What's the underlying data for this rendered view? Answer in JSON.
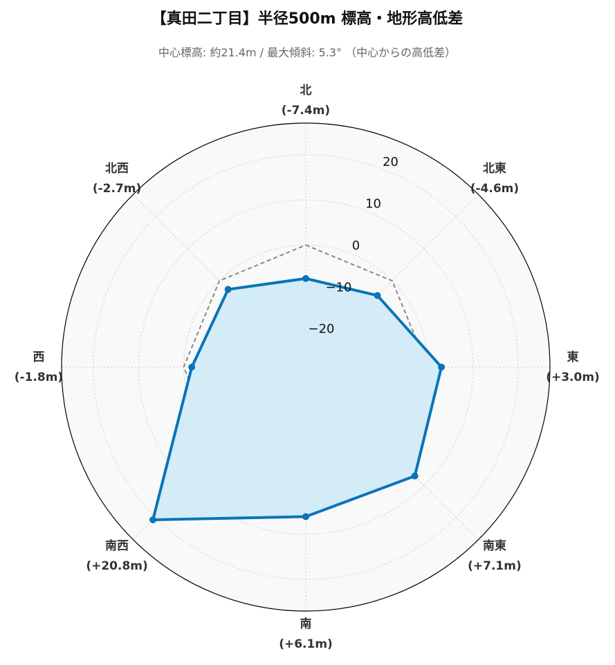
{
  "chart_data": {
    "type": "radar",
    "title": "【真田二丁目】半径500m 標高・地形高低差",
    "subtitle": "中心標高: 約21.4m / 最大傾斜: 5.3° （中心からの高低差）",
    "categories": [
      "北",
      "北東",
      "東",
      "南東",
      "南",
      "南西",
      "西",
      "北西"
    ],
    "series": [
      {
        "color": "#0a74b8",
        "fill": "#d3ecf8",
        "values": [
          -7.4,
          -4.6,
          3.0,
          7.1,
          6.1,
          20.8,
          -1.8,
          -2.7
        ],
        "value_labels": [
          "(-7.4m)",
          "(-4.6m)",
          "(+3.0m)",
          "(+7.1m)",
          "(+6.1m)",
          "(+20.8m)",
          "(-1.8m)",
          "(-2.7m)"
        ]
      }
    ],
    "reference": 0,
    "rlim": [
      -27,
      27
    ],
    "rticks": [
      {
        "value": -20,
        "label": "−20"
      },
      {
        "value": -10,
        "label": "−10"
      },
      0,
      10,
      20
    ],
    "grid": true
  }
}
